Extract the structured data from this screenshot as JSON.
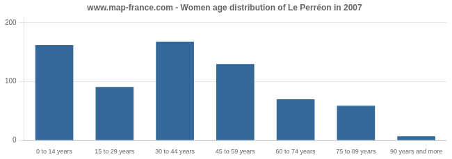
{
  "chart_data": {
    "type": "bar",
    "title": "www.map-france.com - Women age distribution of Le Perréon in 2007",
    "categories": [
      "0 to 14 years",
      "15 to 29 years",
      "30 to 44 years",
      "45 to 59 years",
      "60 to 74 years",
      "75 to 89 years",
      "90 years and more"
    ],
    "values": [
      162,
      91,
      168,
      130,
      70,
      59,
      7
    ],
    "color": "#34689a",
    "ylim": [
      0,
      210
    ],
    "yticks": [
      0,
      100,
      200
    ],
    "grid": true
  }
}
